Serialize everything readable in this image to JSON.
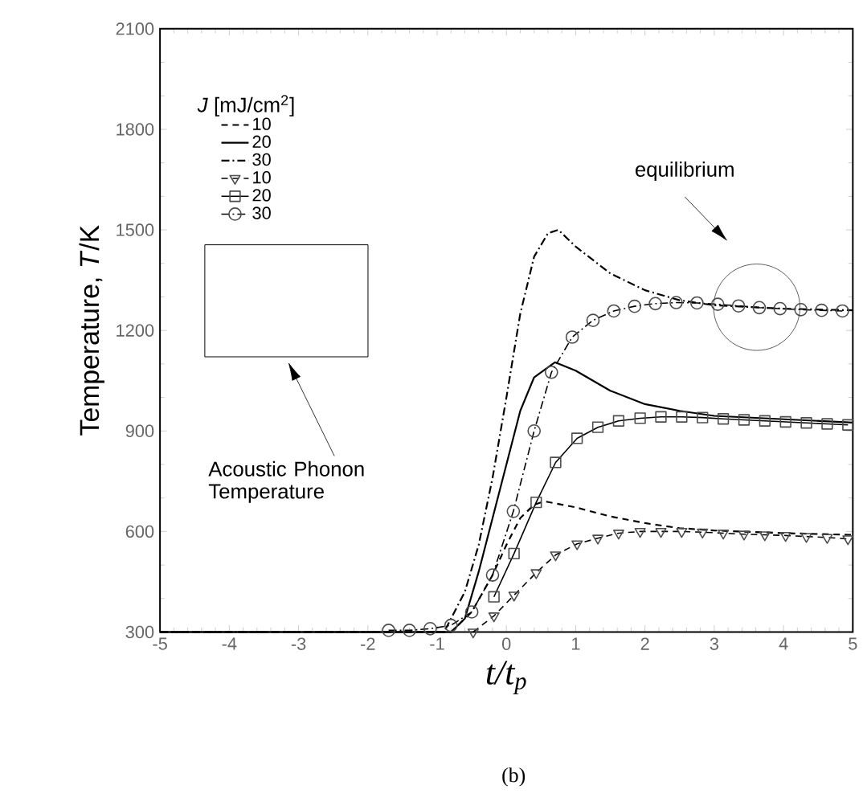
{
  "chart_data": {
    "type": "line",
    "xlabel": "*t*/*t*$_{p}$",
    "ylabel": "Temperature, *T*/K",
    "legend_title": "*J* [mJ/cm$^{2}$]",
    "legend": "top left",
    "xlim": [
      -5,
      5
    ],
    "ylim": [
      300,
      2100
    ],
    "xticks": [
      -5,
      -4,
      -3,
      -2,
      -1,
      0,
      1,
      2,
      3,
      4,
      5
    ],
    "yticks": [
      300,
      600,
      900,
      1200,
      1500,
      1800,
      2100
    ],
    "series": [
      {
        "name": "10",
        "color": "#000000",
        "line_style": "dashed",
        "marker": "none",
        "x": [
          -5,
          -0.8,
          -0.5,
          -0.2,
          0,
          0.2,
          0.4,
          0.55,
          1,
          1.5,
          2,
          2.5,
          3,
          4,
          5
        ],
        "values": [
          300,
          300,
          360,
          470,
          560,
          640,
          680,
          690,
          672,
          645,
          625,
          610,
          603,
          595,
          590
        ]
      },
      {
        "name": "20",
        "color": "#000000",
        "line_style": "solid",
        "marker": "none",
        "x": [
          -5,
          -0.8,
          -0.6,
          -0.4,
          -0.2,
          0,
          0.2,
          0.4,
          0.7,
          1,
          1.5,
          2,
          2.5,
          3,
          4,
          5
        ],
        "values": [
          300,
          300,
          340,
          480,
          640,
          800,
          960,
          1060,
          1105,
          1080,
          1020,
          980,
          960,
          945,
          935,
          925
        ]
      },
      {
        "name": "30",
        "color": "#000000",
        "line_style": "dashdot",
        "marker": "none",
        "x": [
          -5,
          -0.9,
          -0.6,
          -0.4,
          -0.2,
          0,
          0.2,
          0.4,
          0.6,
          0.75,
          1,
          1.5,
          2,
          2.5,
          3,
          4,
          5
        ],
        "values": [
          300,
          300,
          420,
          560,
          760,
          1000,
          1250,
          1420,
          1490,
          1500,
          1450,
          1370,
          1320,
          1290,
          1275,
          1265,
          1260
        ]
      },
      {
        "name": "10",
        "color": "#000000",
        "line_style": "dashed",
        "marker": "triangle",
        "x": [
          -0.48,
          -0.18,
          0.11,
          0.43,
          0.71,
          1.02,
          1.32,
          1.62,
          1.93,
          2.23,
          2.53,
          2.83,
          3.13,
          3.43,
          3.73,
          4.03,
          4.33,
          4.63,
          4.93
        ],
        "values": [
          300,
          348,
          410,
          477,
          530,
          563,
          580,
          595,
          600,
          600,
          600,
          598,
          595,
          592,
          590,
          588,
          585,
          582,
          578
        ]
      },
      {
        "name": "20",
        "color": "#000000",
        "line_style": "solid",
        "marker": "square",
        "x": [
          -0.18,
          0.11,
          0.43,
          0.71,
          1.02,
          1.32,
          1.62,
          1.93,
          2.23,
          2.53,
          2.83,
          3.13,
          3.43,
          3.73,
          4.03,
          4.33,
          4.63,
          4.93
        ],
        "values": [
          405,
          534,
          687,
          806,
          878,
          911,
          930,
          938,
          942,
          942,
          940,
          936,
          933,
          930,
          927,
          924,
          921,
          918
        ]
      },
      {
        "name": "30",
        "color": "#000000",
        "line_style": "dashdot",
        "marker": "circle",
        "x": [
          -1.7,
          -1.4,
          -1.1,
          -0.8,
          -0.5,
          -0.2,
          0.1,
          0.4,
          0.65,
          0.95,
          1.25,
          1.55,
          1.85,
          2.15,
          2.45,
          2.75,
          3.05,
          3.35,
          3.65,
          3.95,
          4.25,
          4.55,
          4.85
        ],
        "values": [
          305,
          305,
          310,
          320,
          360,
          470,
          660,
          900,
          1075,
          1180,
          1230,
          1258,
          1272,
          1280,
          1283,
          1282,
          1278,
          1273,
          1268,
          1265,
          1262,
          1260,
          1258
        ]
      }
    ],
    "annotations": [
      "equilibrium",
      "Acoustic Phonon Temperature",
      "(b)"
    ]
  }
}
